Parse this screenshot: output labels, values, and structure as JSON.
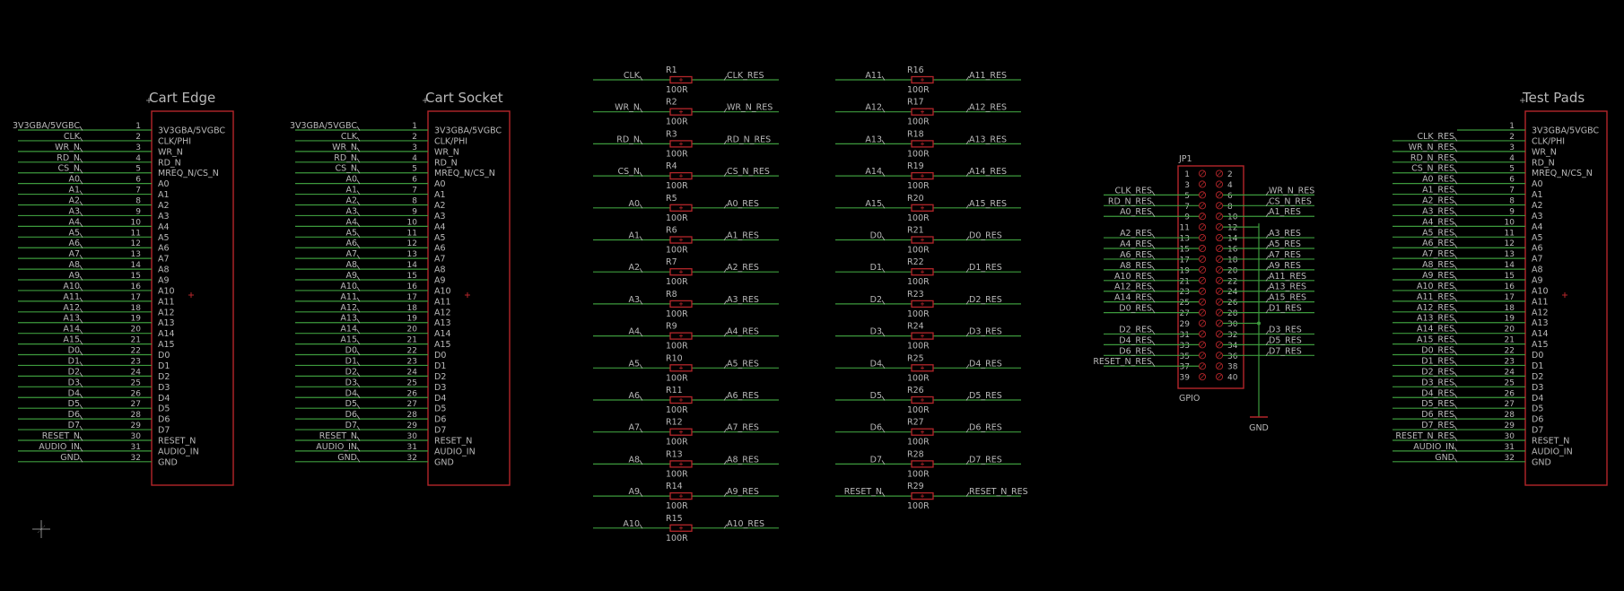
{
  "colors": {
    "background": "#000000",
    "body_outline": "#b4262a",
    "wire": "#3d9a3d",
    "text": "#b9b9b9"
  },
  "connectors": [
    {
      "id": "cart-edge",
      "title": "Cart Edge",
      "pins": [
        {
          "num": "1",
          "net": "3V3GBA/5VGBC",
          "label": "3V3GBA/5VGBC"
        },
        {
          "num": "2",
          "net": "CLK",
          "label": "CLK/PHI"
        },
        {
          "num": "3",
          "net": "WR_N",
          "label": "WR_N"
        },
        {
          "num": "4",
          "net": "RD_N",
          "label": "RD_N"
        },
        {
          "num": "5",
          "net": "CS_N",
          "label": "MREQ_N/CS_N"
        },
        {
          "num": "6",
          "net": "A0",
          "label": "A0"
        },
        {
          "num": "7",
          "net": "A1",
          "label": "A1"
        },
        {
          "num": "8",
          "net": "A2",
          "label": "A2"
        },
        {
          "num": "9",
          "net": "A3",
          "label": "A3"
        },
        {
          "num": "10",
          "net": "A4",
          "label": "A4"
        },
        {
          "num": "11",
          "net": "A5",
          "label": "A5"
        },
        {
          "num": "12",
          "net": "A6",
          "label": "A6"
        },
        {
          "num": "13",
          "net": "A7",
          "label": "A7"
        },
        {
          "num": "14",
          "net": "A8",
          "label": "A8"
        },
        {
          "num": "15",
          "net": "A9",
          "label": "A9"
        },
        {
          "num": "16",
          "net": "A10",
          "label": "A10"
        },
        {
          "num": "17",
          "net": "A11",
          "label": "A11"
        },
        {
          "num": "18",
          "net": "A12",
          "label": "A12"
        },
        {
          "num": "19",
          "net": "A13",
          "label": "A13"
        },
        {
          "num": "20",
          "net": "A14",
          "label": "A14"
        },
        {
          "num": "21",
          "net": "A15",
          "label": "A15"
        },
        {
          "num": "22",
          "net": "D0",
          "label": "D0"
        },
        {
          "num": "23",
          "net": "D1",
          "label": "D1"
        },
        {
          "num": "24",
          "net": "D2",
          "label": "D2"
        },
        {
          "num": "25",
          "net": "D3",
          "label": "D3"
        },
        {
          "num": "26",
          "net": "D4",
          "label": "D4"
        },
        {
          "num": "27",
          "net": "D5",
          "label": "D5"
        },
        {
          "num": "28",
          "net": "D6",
          "label": "D6"
        },
        {
          "num": "29",
          "net": "D7",
          "label": "D7"
        },
        {
          "num": "30",
          "net": "RESET_N",
          "label": "RESET_N"
        },
        {
          "num": "31",
          "net": "AUDIO_IN",
          "label": "AUDIO_IN"
        },
        {
          "num": "32",
          "net": "GND",
          "label": "GND"
        }
      ]
    },
    {
      "id": "cart-socket",
      "title": "Cart Socket",
      "pins": [
        {
          "num": "1",
          "net": "3V3GBA/5VGBC",
          "label": "3V3GBA/5VGBC"
        },
        {
          "num": "2",
          "net": "CLK",
          "label": "CLK/PHI"
        },
        {
          "num": "3",
          "net": "WR_N",
          "label": "WR_N"
        },
        {
          "num": "4",
          "net": "RD_N",
          "label": "RD_N"
        },
        {
          "num": "5",
          "net": "CS_N",
          "label": "MREQ_N/CS_N"
        },
        {
          "num": "6",
          "net": "A0",
          "label": "A0"
        },
        {
          "num": "7",
          "net": "A1",
          "label": "A1"
        },
        {
          "num": "8",
          "net": "A2",
          "label": "A2"
        },
        {
          "num": "9",
          "net": "A3",
          "label": "A3"
        },
        {
          "num": "10",
          "net": "A4",
          "label": "A4"
        },
        {
          "num": "11",
          "net": "A5",
          "label": "A5"
        },
        {
          "num": "12",
          "net": "A6",
          "label": "A6"
        },
        {
          "num": "13",
          "net": "A7",
          "label": "A7"
        },
        {
          "num": "14",
          "net": "A8",
          "label": "A8"
        },
        {
          "num": "15",
          "net": "A9",
          "label": "A9"
        },
        {
          "num": "16",
          "net": "A10",
          "label": "A10"
        },
        {
          "num": "17",
          "net": "A11",
          "label": "A11"
        },
        {
          "num": "18",
          "net": "A12",
          "label": "A12"
        },
        {
          "num": "19",
          "net": "A13",
          "label": "A13"
        },
        {
          "num": "20",
          "net": "A14",
          "label": "A14"
        },
        {
          "num": "21",
          "net": "A15",
          "label": "A15"
        },
        {
          "num": "22",
          "net": "D0",
          "label": "D0"
        },
        {
          "num": "23",
          "net": "D1",
          "label": "D1"
        },
        {
          "num": "24",
          "net": "D2",
          "label": "D2"
        },
        {
          "num": "25",
          "net": "D3",
          "label": "D3"
        },
        {
          "num": "26",
          "net": "D4",
          "label": "D4"
        },
        {
          "num": "27",
          "net": "D5",
          "label": "D5"
        },
        {
          "num": "28",
          "net": "D6",
          "label": "D6"
        },
        {
          "num": "29",
          "net": "D7",
          "label": "D7"
        },
        {
          "num": "30",
          "net": "RESET_N",
          "label": "RESET_N"
        },
        {
          "num": "31",
          "net": "AUDIO_IN",
          "label": "AUDIO_IN"
        },
        {
          "num": "32",
          "net": "GND",
          "label": "GND"
        }
      ]
    },
    {
      "id": "test-pads",
      "title": "Test Pads",
      "pins": [
        {
          "num": "1",
          "net": "",
          "label": "3V3GBA/5VGBC"
        },
        {
          "num": "2",
          "net": "CLK_RES",
          "label": "CLK/PHI"
        },
        {
          "num": "3",
          "net": "WR_N_RES",
          "label": "WR_N"
        },
        {
          "num": "4",
          "net": "RD_N_RES",
          "label": "RD_N"
        },
        {
          "num": "5",
          "net": "CS_N_RES",
          "label": "MREQ_N/CS_N"
        },
        {
          "num": "6",
          "net": "A0_RES",
          "label": "A0"
        },
        {
          "num": "7",
          "net": "A1_RES",
          "label": "A1"
        },
        {
          "num": "8",
          "net": "A2_RES",
          "label": "A2"
        },
        {
          "num": "9",
          "net": "A3_RES",
          "label": "A3"
        },
        {
          "num": "10",
          "net": "A4_RES",
          "label": "A4"
        },
        {
          "num": "11",
          "net": "A5_RES",
          "label": "A5"
        },
        {
          "num": "12",
          "net": "A6_RES",
          "label": "A6"
        },
        {
          "num": "13",
          "net": "A7_RES",
          "label": "A7"
        },
        {
          "num": "14",
          "net": "A8_RES",
          "label": "A8"
        },
        {
          "num": "15",
          "net": "A9_RES",
          "label": "A9"
        },
        {
          "num": "16",
          "net": "A10_RES",
          "label": "A10"
        },
        {
          "num": "17",
          "net": "A11_RES",
          "label": "A11"
        },
        {
          "num": "18",
          "net": "A12_RES",
          "label": "A12"
        },
        {
          "num": "19",
          "net": "A13_RES",
          "label": "A13"
        },
        {
          "num": "20",
          "net": "A14_RES",
          "label": "A14"
        },
        {
          "num": "21",
          "net": "A15_RES",
          "label": "A15"
        },
        {
          "num": "22",
          "net": "D0_RES",
          "label": "D0"
        },
        {
          "num": "23",
          "net": "D1_RES",
          "label": "D1"
        },
        {
          "num": "24",
          "net": "D2_RES",
          "label": "D2"
        },
        {
          "num": "25",
          "net": "D3_RES",
          "label": "D3"
        },
        {
          "num": "26",
          "net": "D4_RES",
          "label": "D4"
        },
        {
          "num": "27",
          "net": "D5_RES",
          "label": "D5"
        },
        {
          "num": "28",
          "net": "D6_RES",
          "label": "D6"
        },
        {
          "num": "29",
          "net": "D7_RES",
          "label": "D7"
        },
        {
          "num": "30",
          "net": "RESET_N_RES",
          "label": "RESET_N"
        },
        {
          "num": "31",
          "net": "AUDIO_IN",
          "label": "AUDIO_IN"
        },
        {
          "num": "32",
          "net": "GND",
          "label": "GND"
        }
      ]
    }
  ],
  "resistors": [
    [
      {
        "ref": "R1",
        "value": "100R",
        "in": "CLK",
        "out": "CLK_RES"
      },
      {
        "ref": "R2",
        "value": "100R",
        "in": "WR_N",
        "out": "WR_N_RES"
      },
      {
        "ref": "R3",
        "value": "100R",
        "in": "RD_N",
        "out": "RD_N_RES"
      },
      {
        "ref": "R4",
        "value": "100R",
        "in": "CS_N",
        "out": "CS_N_RES"
      },
      {
        "ref": "R5",
        "value": "100R",
        "in": "A0",
        "out": "A0_RES"
      },
      {
        "ref": "R6",
        "value": "100R",
        "in": "A1",
        "out": "A1_RES"
      },
      {
        "ref": "R7",
        "value": "100R",
        "in": "A2",
        "out": "A2_RES"
      },
      {
        "ref": "R8",
        "value": "100R",
        "in": "A3",
        "out": "A3_RES"
      },
      {
        "ref": "R9",
        "value": "100R",
        "in": "A4",
        "out": "A4_RES"
      },
      {
        "ref": "R10",
        "value": "100R",
        "in": "A5",
        "out": "A5_RES"
      },
      {
        "ref": "R11",
        "value": "100R",
        "in": "A6",
        "out": "A6_RES"
      },
      {
        "ref": "R12",
        "value": "100R",
        "in": "A7",
        "out": "A7_RES"
      },
      {
        "ref": "R13",
        "value": "100R",
        "in": "A8",
        "out": "A8_RES"
      },
      {
        "ref": "R14",
        "value": "100R",
        "in": "A9",
        "out": "A9_RES"
      },
      {
        "ref": "R15",
        "value": "100R",
        "in": "A10",
        "out": "A10_RES"
      }
    ],
    [
      {
        "ref": "R16",
        "value": "100R",
        "in": "A11",
        "out": "A11_RES"
      },
      {
        "ref": "R17",
        "value": "100R",
        "in": "A12",
        "out": "A12_RES"
      },
      {
        "ref": "R18",
        "value": "100R",
        "in": "A13",
        "out": "A13_RES"
      },
      {
        "ref": "R19",
        "value": "100R",
        "in": "A14",
        "out": "A14_RES"
      },
      {
        "ref": "R20",
        "value": "100R",
        "in": "A15",
        "out": "A15_RES"
      },
      {
        "ref": "R21",
        "value": "100R",
        "in": "D0",
        "out": "D0_RES"
      },
      {
        "ref": "R22",
        "value": "100R",
        "in": "D1",
        "out": "D1_RES"
      },
      {
        "ref": "R23",
        "value": "100R",
        "in": "D2",
        "out": "D2_RES"
      },
      {
        "ref": "R24",
        "value": "100R",
        "in": "D3",
        "out": "D3_RES"
      },
      {
        "ref": "R25",
        "value": "100R",
        "in": "D4",
        "out": "D4_RES"
      },
      {
        "ref": "R26",
        "value": "100R",
        "in": "D5",
        "out": "D5_RES"
      },
      {
        "ref": "R27",
        "value": "100R",
        "in": "D6",
        "out": "D6_RES"
      },
      {
        "ref": "R28",
        "value": "100R",
        "in": "D7",
        "out": "D7_RES"
      },
      {
        "ref": "R29",
        "value": "100R",
        "in": "RESET_N",
        "out": "RESET_N_RES"
      }
    ]
  ],
  "gpio": {
    "ref": "JP1",
    "name": "GPIO",
    "ground_label": "GND",
    "rows": [
      {
        "odd": "1",
        "even": "2",
        "left": "",
        "right": ""
      },
      {
        "odd": "3",
        "even": "4",
        "left": "",
        "right": ""
      },
      {
        "odd": "5",
        "even": "6",
        "left": "CLK_RES",
        "right": "WR_N_RES"
      },
      {
        "odd": "7",
        "even": "8",
        "left": "RD_N_RES",
        "right": "CS_N_RES"
      },
      {
        "odd": "9",
        "even": "10",
        "left": "A0_RES",
        "right": "A1_RES"
      },
      {
        "odd": "11",
        "even": "12",
        "left": "",
        "right": ""
      },
      {
        "odd": "13",
        "even": "14",
        "left": "A2_RES",
        "right": "A3_RES"
      },
      {
        "odd": "15",
        "even": "16",
        "left": "A4_RES",
        "right": "A5_RES"
      },
      {
        "odd": "17",
        "even": "18",
        "left": "A6_RES",
        "right": "A7_RES"
      },
      {
        "odd": "19",
        "even": "20",
        "left": "A8_RES",
        "right": "A9_RES"
      },
      {
        "odd": "21",
        "even": "22",
        "left": "A10_RES",
        "right": "A11_RES"
      },
      {
        "odd": "23",
        "even": "24",
        "left": "A12_RES",
        "right": "A13_RES"
      },
      {
        "odd": "25",
        "even": "26",
        "left": "A14_RES",
        "right": "A15_RES"
      },
      {
        "odd": "27",
        "even": "28",
        "left": "D0_RES",
        "right": "D1_RES"
      },
      {
        "odd": "29",
        "even": "30",
        "left": "",
        "right": ""
      },
      {
        "odd": "31",
        "even": "32",
        "left": "D2_RES",
        "right": "D3_RES"
      },
      {
        "odd": "33",
        "even": "34",
        "left": "D4_RES",
        "right": "D5_RES"
      },
      {
        "odd": "35",
        "even": "36",
        "left": "D6_RES",
        "right": "D7_RES"
      },
      {
        "odd": "37",
        "even": "38",
        "left": "RESET_N_RES",
        "right": ""
      },
      {
        "odd": "39",
        "even": "40",
        "left": "",
        "right": ""
      }
    ]
  }
}
